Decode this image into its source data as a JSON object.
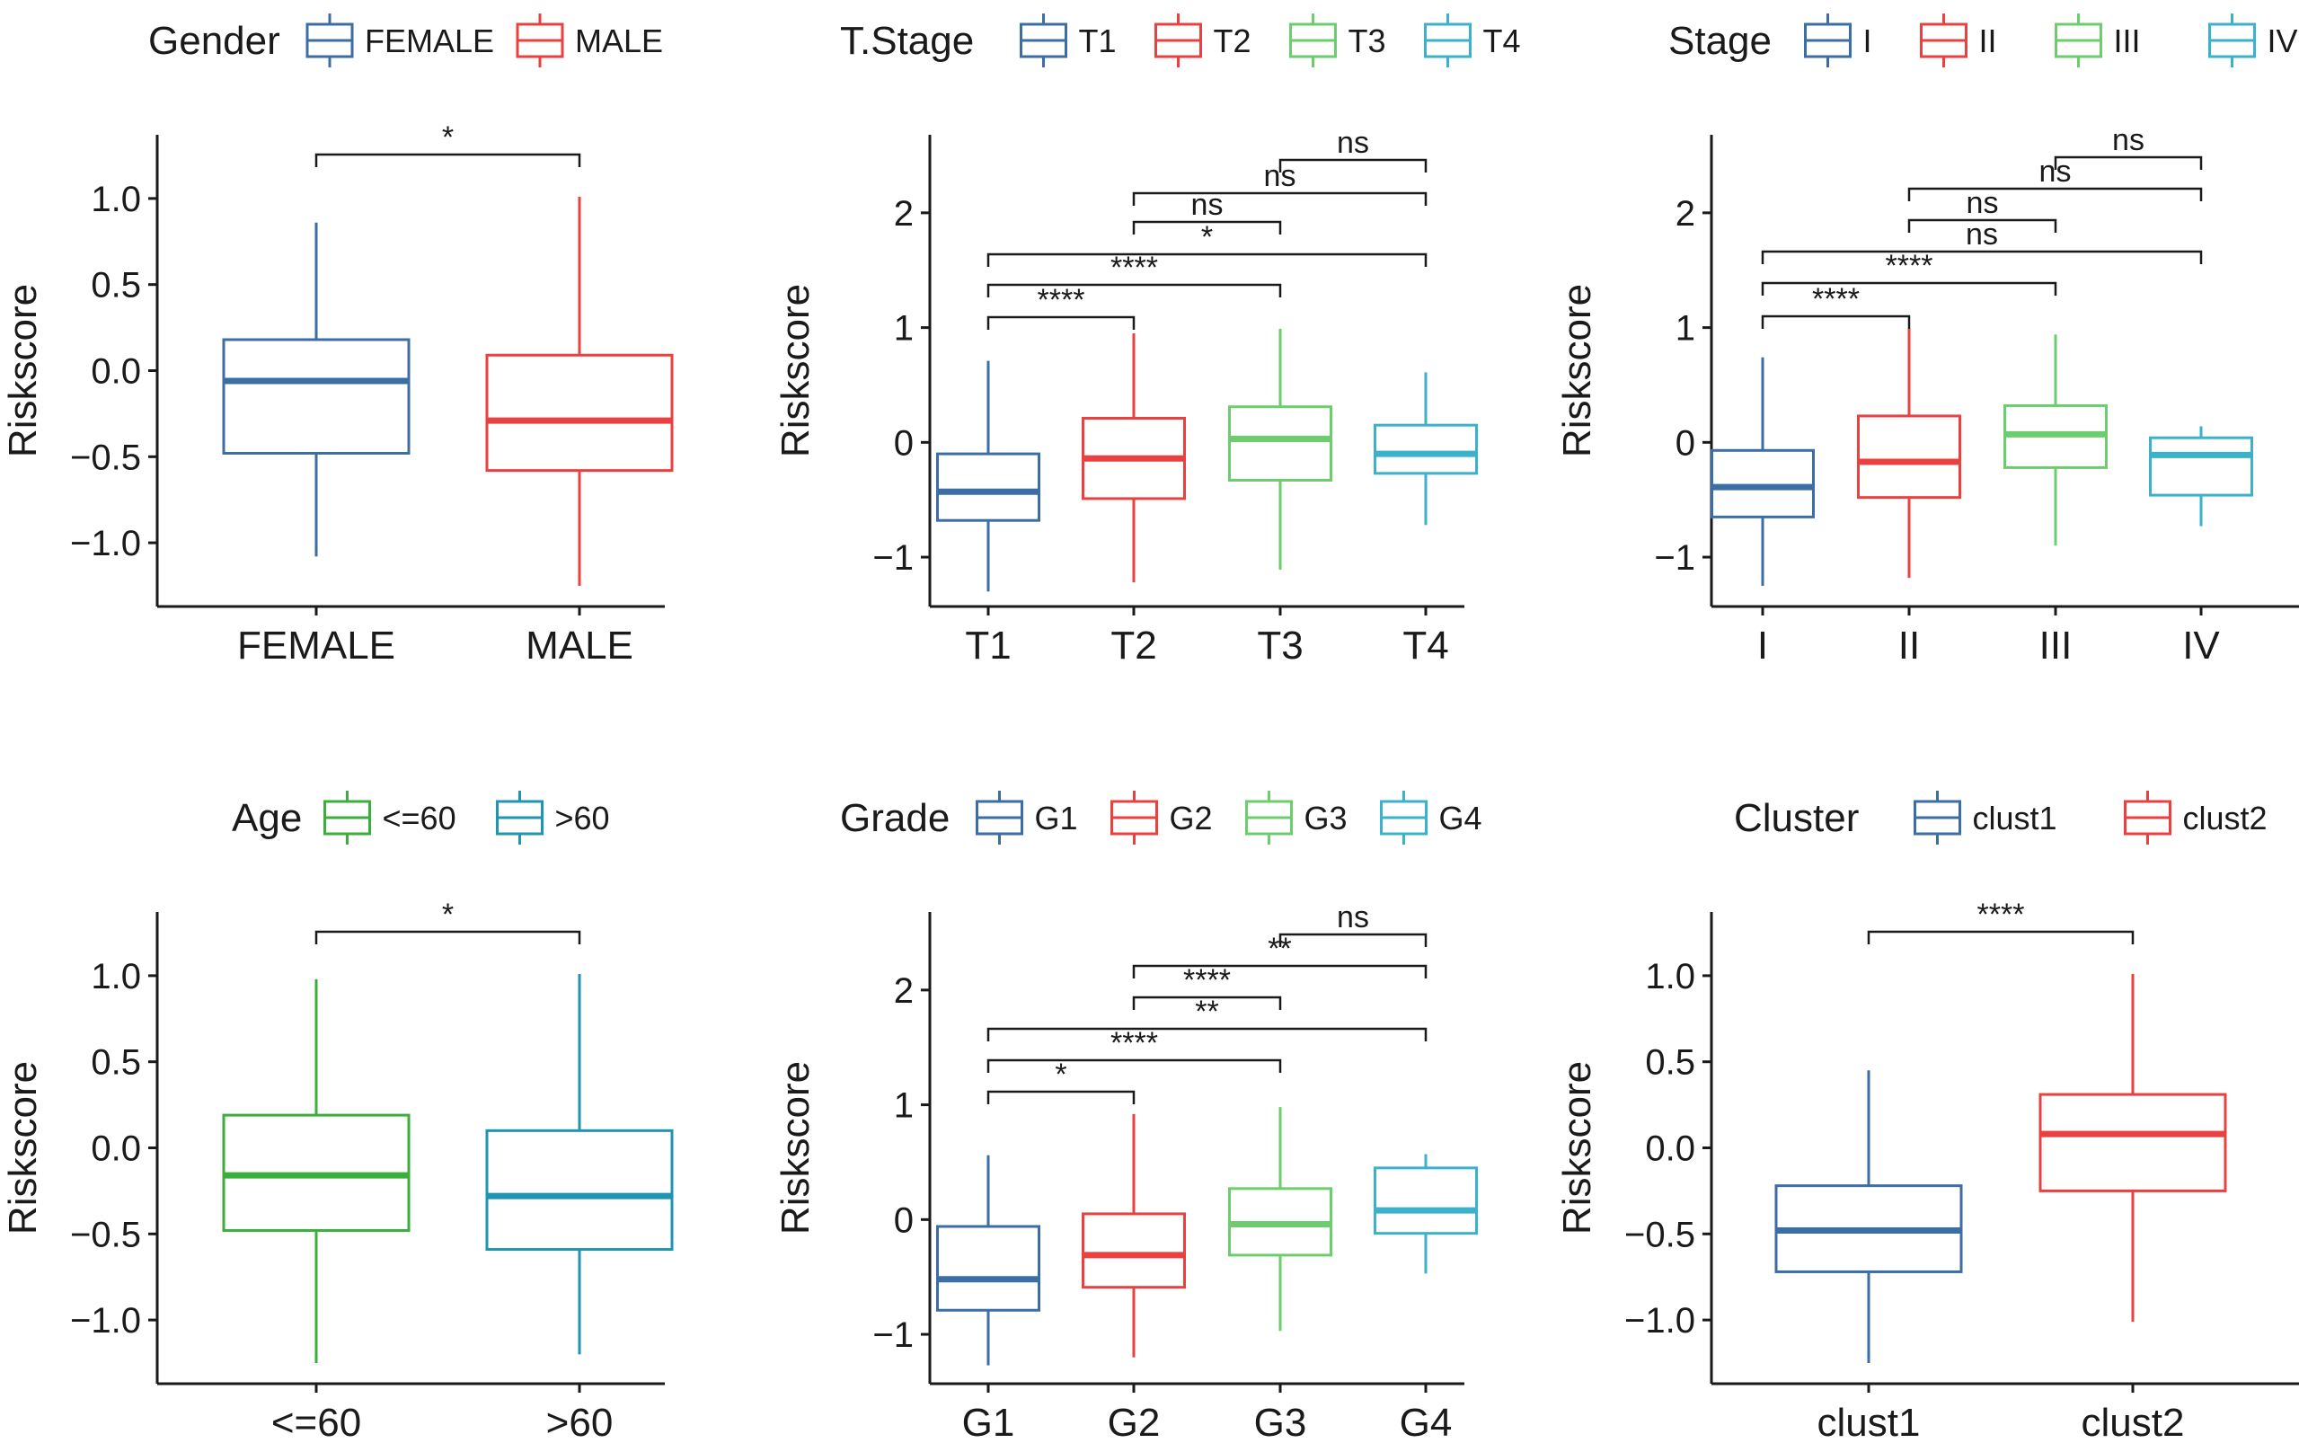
{
  "chart_data": [
    {
      "type": "box",
      "legend_title": "Gender",
      "ylabel": "Riskscore",
      "ylim": [
        -1.37,
        1.37
      ],
      "yticks": [
        -1.0,
        -0.5,
        0.0,
        0.5,
        1.0
      ],
      "ytick_labels": [
        "−1.0",
        "−0.5",
        "0.0",
        "0.5",
        "1.0"
      ],
      "categories": [
        "FEMALE",
        "MALE"
      ],
      "colors": [
        "#3c6ea6",
        "#e8413f"
      ],
      "boxes": [
        {
          "name": "FEMALE",
          "whisker_low": -1.08,
          "q1": -0.48,
          "median": -0.06,
          "q3": 0.18,
          "whisker_high": 0.86
        },
        {
          "name": "MALE",
          "whisker_low": -1.25,
          "q1": -0.58,
          "median": -0.29,
          "q3": 0.09,
          "whisker_high": 1.01
        }
      ],
      "comparisons": [
        {
          "from": 1,
          "to": 2,
          "label": "*"
        }
      ]
    },
    {
      "type": "box",
      "legend_title": "T.Stage",
      "ylabel": "Riskscore",
      "ylim": [
        -1.43,
        2.68
      ],
      "yticks": [
        -1,
        0,
        1,
        2
      ],
      "ytick_labels": [
        "−1",
        "0",
        "1",
        "2"
      ],
      "categories": [
        "T1",
        "T2",
        "T3",
        "T4"
      ],
      "colors": [
        "#3c6ea6",
        "#e8413f",
        "#6ccd6c",
        "#3bb1cc"
      ],
      "boxes": [
        {
          "name": "T1",
          "whisker_low": -1.3,
          "q1": -0.68,
          "median": -0.43,
          "q3": -0.1,
          "whisker_high": 0.71
        },
        {
          "name": "T2",
          "whisker_low": -1.22,
          "q1": -0.49,
          "median": -0.14,
          "q3": 0.21,
          "whisker_high": 0.95
        },
        {
          "name": "T3",
          "whisker_low": -1.11,
          "q1": -0.33,
          "median": 0.03,
          "q3": 0.31,
          "whisker_high": 0.99
        },
        {
          "name": "T4",
          "whisker_low": -0.72,
          "q1": -0.27,
          "median": -0.1,
          "q3": 0.15,
          "whisker_high": 0.61
        }
      ],
      "comparisons": [
        {
          "from": 1,
          "to": 2,
          "label": "****"
        },
        {
          "from": 1,
          "to": 3,
          "label": "****"
        },
        {
          "from": 1,
          "to": 4,
          "label": "*"
        },
        {
          "from": 2,
          "to": 3,
          "label": "ns"
        },
        {
          "from": 2,
          "to": 4,
          "label": "ns"
        },
        {
          "from": 3,
          "to": 4,
          "label": "ns"
        }
      ]
    },
    {
      "type": "box",
      "legend_title": "Stage",
      "ylabel": "Riskscore",
      "ylim": [
        -1.43,
        2.68
      ],
      "yticks": [
        -1,
        0,
        1,
        2
      ],
      "ytick_labels": [
        "−1",
        "0",
        "1",
        "2"
      ],
      "categories": [
        "I",
        "II",
        "III",
        "IV"
      ],
      "colors": [
        "#3c6ea6",
        "#e8413f",
        "#6ccd6c",
        "#3bb1cc"
      ],
      "boxes": [
        {
          "name": "I",
          "whisker_low": -1.25,
          "q1": -0.65,
          "median": -0.39,
          "q3": -0.07,
          "whisker_high": 0.74
        },
        {
          "name": "II",
          "whisker_low": -1.18,
          "q1": -0.48,
          "median": -0.17,
          "q3": 0.23,
          "whisker_high": 0.99
        },
        {
          "name": "III",
          "whisker_low": -0.9,
          "q1": -0.22,
          "median": 0.07,
          "q3": 0.32,
          "whisker_high": 0.94
        },
        {
          "name": "IV",
          "whisker_low": -0.73,
          "q1": -0.46,
          "median": -0.11,
          "q3": 0.04,
          "whisker_high": 0.14
        }
      ],
      "comparisons": [
        {
          "from": 1,
          "to": 2,
          "label": "****"
        },
        {
          "from": 1,
          "to": 3,
          "label": "****"
        },
        {
          "from": 1,
          "to": 4,
          "label": "ns"
        },
        {
          "from": 2,
          "to": 3,
          "label": "ns"
        },
        {
          "from": 2,
          "to": 4,
          "label": "ns"
        },
        {
          "from": 3,
          "to": 4,
          "label": "ns"
        }
      ]
    },
    {
      "type": "box",
      "legend_title": "Age",
      "ylabel": "Riskscore",
      "ylim": [
        -1.37,
        1.37
      ],
      "yticks": [
        -1.0,
        -0.5,
        0.0,
        0.5,
        1.0
      ],
      "ytick_labels": [
        "−1.0",
        "−0.5",
        "0.0",
        "0.5",
        "1.0"
      ],
      "categories": [
        "<=60",
        ">60"
      ],
      "colors": [
        "#3cae3c",
        "#1f95b2"
      ],
      "boxes": [
        {
          "name": "<=60",
          "whisker_low": -1.25,
          "q1": -0.48,
          "median": -0.16,
          "q3": 0.19,
          "whisker_high": 0.98
        },
        {
          "name": ">60",
          "whisker_low": -1.2,
          "q1": -0.59,
          "median": -0.28,
          "q3": 0.1,
          "whisker_high": 1.01
        }
      ],
      "comparisons": [
        {
          "from": 1,
          "to": 2,
          "label": "*"
        }
      ]
    },
    {
      "type": "box",
      "legend_title": "Grade",
      "ylabel": "Riskscore",
      "ylim": [
        -1.43,
        2.68
      ],
      "yticks": [
        -1,
        0,
        1,
        2
      ],
      "ytick_labels": [
        "−1",
        "0",
        "1",
        "2"
      ],
      "categories": [
        "G1",
        "G2",
        "G3",
        "G4"
      ],
      "colors": [
        "#3c6ea6",
        "#e8413f",
        "#6ccd6c",
        "#3bb1cc"
      ],
      "boxes": [
        {
          "name": "G1",
          "whisker_low": -1.27,
          "q1": -0.79,
          "median": -0.52,
          "q3": -0.06,
          "whisker_high": 0.56
        },
        {
          "name": "G2",
          "whisker_low": -1.2,
          "q1": -0.59,
          "median": -0.31,
          "q3": 0.05,
          "whisker_high": 0.92
        },
        {
          "name": "G3",
          "whisker_low": -0.97,
          "q1": -0.31,
          "median": -0.04,
          "q3": 0.27,
          "whisker_high": 0.98
        },
        {
          "name": "G4",
          "whisker_low": -0.47,
          "q1": -0.12,
          "median": 0.08,
          "q3": 0.45,
          "whisker_high": 0.57
        }
      ],
      "comparisons": [
        {
          "from": 1,
          "to": 2,
          "label": "*"
        },
        {
          "from": 1,
          "to": 3,
          "label": "****"
        },
        {
          "from": 1,
          "to": 4,
          "label": "**"
        },
        {
          "from": 2,
          "to": 3,
          "label": "****"
        },
        {
          "from": 2,
          "to": 4,
          "label": "**"
        },
        {
          "from": 3,
          "to": 4,
          "label": "ns"
        }
      ]
    },
    {
      "type": "box",
      "legend_title": "Cluster",
      "ylabel": "Riskscore",
      "ylim": [
        -1.37,
        1.37
      ],
      "yticks": [
        -1.0,
        -0.5,
        0.0,
        0.5,
        1.0
      ],
      "ytick_labels": [
        "−1.0",
        "−0.5",
        "0.0",
        "0.5",
        "1.0"
      ],
      "categories": [
        "clust1",
        "clust2"
      ],
      "colors": [
        "#3c6ea6",
        "#e8413f"
      ],
      "boxes": [
        {
          "name": "clust1",
          "whisker_low": -1.25,
          "q1": -0.72,
          "median": -0.48,
          "q3": -0.22,
          "whisker_high": 0.45
        },
        {
          "name": "clust2",
          "whisker_low": -1.01,
          "q1": -0.25,
          "median": 0.08,
          "q3": 0.31,
          "whisker_high": 1.01
        }
      ],
      "comparisons": [
        {
          "from": 1,
          "to": 2,
          "label": "****"
        }
      ]
    }
  ]
}
